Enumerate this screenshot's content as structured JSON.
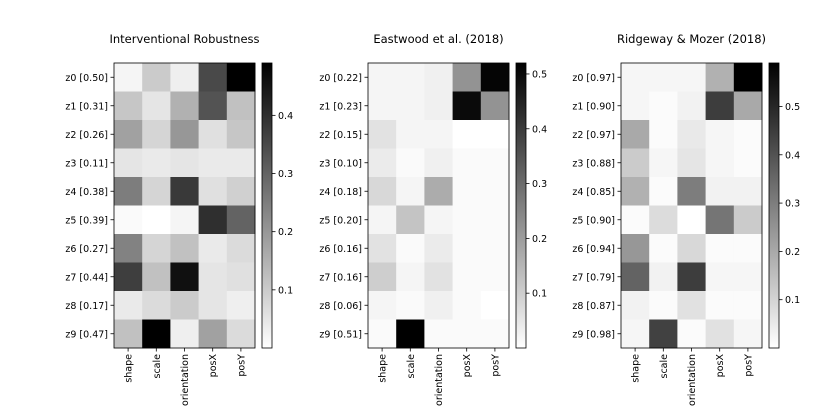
{
  "chart_data": [
    {
      "type": "heatmap",
      "title": "Interventional Robustness",
      "x_labels": [
        "shape",
        "scale",
        "orientation",
        "posX",
        "posY"
      ],
      "y_labels": [
        "z0 [0.50]",
        "z1 [0.31]",
        "z2 [0.26]",
        "z3 [0.11]",
        "z4 [0.38]",
        "z5 [0.39]",
        "z6 [0.27]",
        "z7 [0.44]",
        "z8 [0.17]",
        "z9 [0.47]"
      ],
      "values": [
        [
          0.02,
          0.1,
          0.03,
          0.35,
          0.49
        ],
        [
          0.11,
          0.05,
          0.15,
          0.33,
          0.12
        ],
        [
          0.18,
          0.08,
          0.2,
          0.06,
          0.11
        ],
        [
          0.05,
          0.04,
          0.05,
          0.04,
          0.04
        ],
        [
          0.25,
          0.08,
          0.38,
          0.06,
          0.09
        ],
        [
          0.01,
          0.0,
          0.02,
          0.4,
          0.3
        ],
        [
          0.24,
          0.08,
          0.12,
          0.04,
          0.07
        ],
        [
          0.37,
          0.12,
          0.46,
          0.05,
          0.06
        ],
        [
          0.04,
          0.07,
          0.1,
          0.05,
          0.03
        ],
        [
          0.12,
          0.49,
          0.03,
          0.18,
          0.07
        ]
      ],
      "colorbar": {
        "vmin": 0,
        "vmax": 0.49,
        "ticks": [
          0.1,
          0.2,
          0.3,
          0.4
        ],
        "tick_labels": [
          "0.1",
          "0.2",
          "0.3",
          "0.4"
        ]
      },
      "colormap": "Greys"
    },
    {
      "type": "heatmap",
      "title": "Eastwood et al. (2018)",
      "x_labels": [
        "shape",
        "scale",
        "orientation",
        "posX",
        "posY"
      ],
      "y_labels": [
        "z0 [0.22]",
        "z1 [0.23]",
        "z2 [0.15]",
        "z3 [0.10]",
        "z4 [0.18]",
        "z5 [0.20]",
        "z6 [0.16]",
        "z7 [0.16]",
        "z8 [0.06]",
        "z9 [0.51]"
      ],
      "values": [
        [
          0.02,
          0.02,
          0.03,
          0.22,
          0.51
        ],
        [
          0.02,
          0.02,
          0.03,
          0.5,
          0.22
        ],
        [
          0.06,
          0.02,
          0.02,
          0.0,
          0.0
        ],
        [
          0.04,
          0.01,
          0.03,
          0.01,
          0.01
        ],
        [
          0.08,
          0.02,
          0.17,
          0.01,
          0.01
        ],
        [
          0.02,
          0.12,
          0.02,
          0.01,
          0.01
        ],
        [
          0.06,
          0.01,
          0.04,
          0.01,
          0.01
        ],
        [
          0.1,
          0.02,
          0.06,
          0.01,
          0.01
        ],
        [
          0.02,
          0.01,
          0.03,
          0.01,
          0.0
        ],
        [
          0.01,
          0.52,
          0.01,
          0.01,
          0.01
        ]
      ],
      "colorbar": {
        "vmin": 0,
        "vmax": 0.52,
        "ticks": [
          0.1,
          0.2,
          0.3,
          0.4,
          0.5
        ],
        "tick_labels": [
          "0.1",
          "0.2",
          "0.3",
          "0.4",
          "0.5"
        ]
      },
      "colormap": "Greys"
    },
    {
      "type": "heatmap",
      "title": "Ridgeway & Mozer (2018)",
      "x_labels": [
        "shape",
        "scale",
        "orientation",
        "posX",
        "posY"
      ],
      "y_labels": [
        "z0 [0.97]",
        "z1 [0.90]",
        "z2 [0.97]",
        "z3 [0.88]",
        "z4 [0.85]",
        "z5 [0.90]",
        "z6 [0.94]",
        "z7 [0.79]",
        "z8 [0.87]",
        "z9 [0.98]"
      ],
      "values": [
        [
          0.02,
          0.02,
          0.02,
          0.18,
          0.59
        ],
        [
          0.02,
          0.01,
          0.03,
          0.45,
          0.2
        ],
        [
          0.2,
          0.01,
          0.05,
          0.02,
          0.01
        ],
        [
          0.12,
          0.02,
          0.06,
          0.02,
          0.01
        ],
        [
          0.18,
          0.01,
          0.3,
          0.03,
          0.03
        ],
        [
          0.01,
          0.08,
          0.0,
          0.32,
          0.12
        ],
        [
          0.24,
          0.01,
          0.09,
          0.01,
          0.01
        ],
        [
          0.36,
          0.03,
          0.45,
          0.02,
          0.02
        ],
        [
          0.03,
          0.01,
          0.07,
          0.01,
          0.01
        ],
        [
          0.02,
          0.44,
          0.01,
          0.07,
          0.02
        ]
      ],
      "colorbar": {
        "vmin": 0,
        "vmax": 0.59,
        "ticks": [
          0.1,
          0.2,
          0.3,
          0.4,
          0.5
        ],
        "tick_labels": [
          "0.1",
          "0.2",
          "0.3",
          "0.4",
          "0.5"
        ]
      },
      "colormap": "Greys"
    }
  ]
}
